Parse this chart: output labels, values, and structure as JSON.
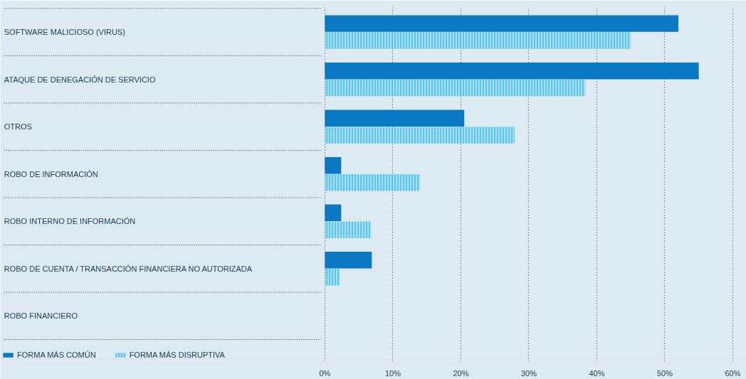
{
  "chart_data": {
    "type": "bar",
    "orientation": "horizontal",
    "categories": [
      "SOFTWARE MALICIOSO (VIRUS)",
      "ATAQUE DE DENEGACIÓN DE SERVICIO",
      "OTROS",
      "ROBO DE INFORMACIÓN",
      "ROBO INTERNO DE INFORMACIÓN",
      "ROBO DE CUENTA / TRANSACCIÓN FINANCIERA NO AUTORIZADA",
      "ROBO FINANCIERO"
    ],
    "series": [
      {
        "name": "FORMA MÁS COMÚN",
        "color": "#0a78c2",
        "values": [
          52,
          55,
          20.5,
          2.4,
          2.4,
          6.9,
          0
        ]
      },
      {
        "name": "FORMA MÁS DISRUPTIVA",
        "color": "#3cc0ec",
        "values": [
          45,
          38.3,
          27.9,
          14,
          6.8,
          2.2,
          0
        ]
      }
    ],
    "xlim": [
      0,
      62
    ],
    "xticks": [
      {
        "value": 0,
        "label": "0%"
      },
      {
        "value": 10,
        "label": "10%"
      },
      {
        "value": 20,
        "label": "20%"
      },
      {
        "value": 30,
        "label": "30%"
      },
      {
        "value": 40,
        "label": "40%"
      },
      {
        "value": 50,
        "label": "50%"
      },
      {
        "value": 60,
        "label": "60%"
      }
    ],
    "grid": "x",
    "legend": "bottom left"
  }
}
